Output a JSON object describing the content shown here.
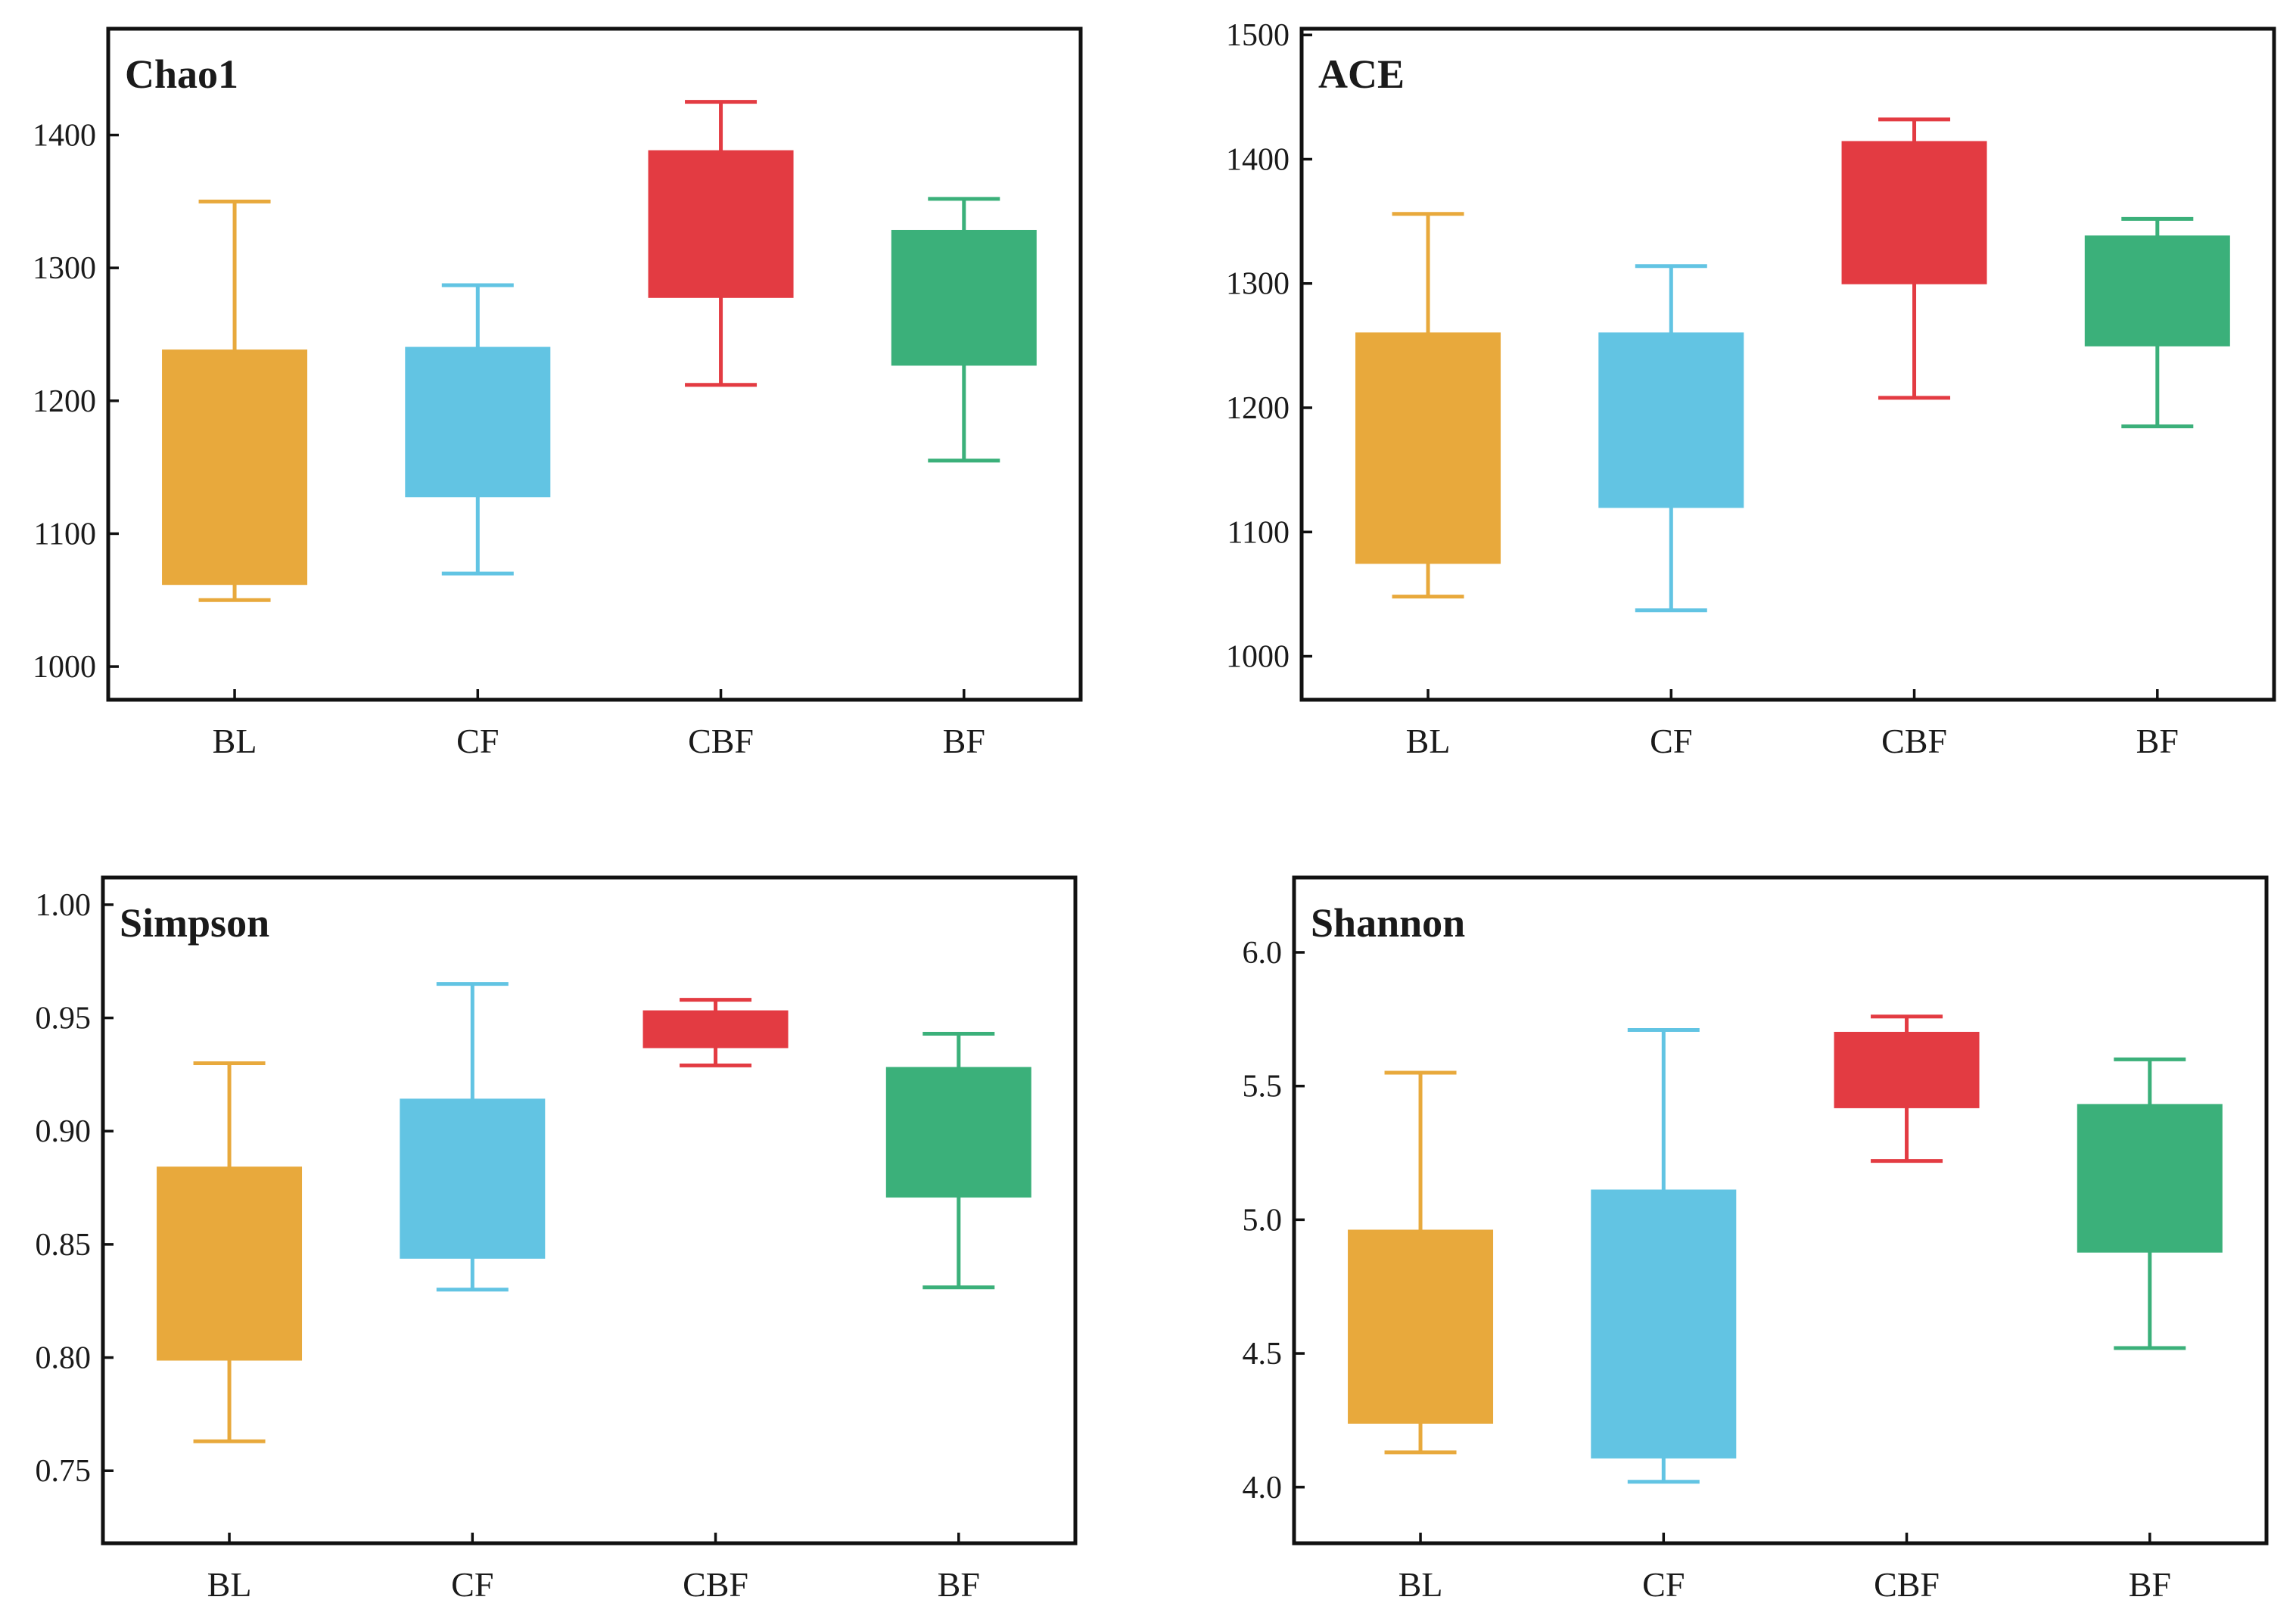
{
  "chart_data": [
    {
      "type": "box",
      "title": "Chao1",
      "categories": [
        "BL",
        "CF",
        "CBF",
        "BF"
      ],
      "colors": [
        "#E8A93C",
        "#62C4E3",
        "#E33B42",
        "#3BB07A"
      ],
      "ylim": [
        975,
        1480
      ],
      "yticks": [
        1000,
        1100,
        1200,
        1300,
        1400
      ],
      "ytick_labels": [
        "1000",
        "1100",
        "1200",
        "1300",
        "1400"
      ],
      "boxes": [
        {
          "min": 1050,
          "q1": 1062,
          "q3": 1238,
          "max": 1350
        },
        {
          "min": 1070,
          "q1": 1128,
          "q3": 1240,
          "max": 1287
        },
        {
          "min": 1212,
          "q1": 1278,
          "q3": 1388,
          "max": 1425
        },
        {
          "min": 1155,
          "q1": 1227,
          "q3": 1328,
          "max": 1352
        }
      ]
    },
    {
      "type": "box",
      "title": "ACE",
      "categories": [
        "BL",
        "CF",
        "CBF",
        "BF"
      ],
      "colors": [
        "#E8A93C",
        "#62C4E3",
        "#E33B42",
        "#3BB07A"
      ],
      "ylim": [
        965,
        1505
      ],
      "yticks": [
        1000,
        1100,
        1200,
        1300,
        1400,
        1500
      ],
      "ytick_labels": [
        "1000",
        "1100",
        "1200",
        "1300",
        "1400",
        "1500"
      ],
      "boxes": [
        {
          "min": 1048,
          "q1": 1075,
          "q3": 1260,
          "max": 1356
        },
        {
          "min": 1037,
          "q1": 1120,
          "q3": 1260,
          "max": 1314
        },
        {
          "min": 1208,
          "q1": 1300,
          "q3": 1414,
          "max": 1432
        },
        {
          "min": 1185,
          "q1": 1250,
          "q3": 1338,
          "max": 1352
        }
      ]
    },
    {
      "type": "box",
      "title": "Simpson",
      "categories": [
        "BL",
        "CF",
        "CBF",
        "BF"
      ],
      "colors": [
        "#E8A93C",
        "#62C4E3",
        "#E33B42",
        "#3BB07A"
      ],
      "ylim": [
        0.718,
        1.012
      ],
      "yticks": [
        0.75,
        0.8,
        0.85,
        0.9,
        0.95,
        1.0
      ],
      "ytick_labels": [
        "0.75",
        "0.80",
        "0.85",
        "0.90",
        "0.95",
        "1.00"
      ],
      "boxes": [
        {
          "min": 0.763,
          "q1": 0.799,
          "q3": 0.884,
          "max": 0.93
        },
        {
          "min": 0.83,
          "q1": 0.844,
          "q3": 0.914,
          "max": 0.965
        },
        {
          "min": 0.929,
          "q1": 0.937,
          "q3": 0.953,
          "max": 0.958
        },
        {
          "min": 0.831,
          "q1": 0.871,
          "q3": 0.928,
          "max": 0.943
        }
      ]
    },
    {
      "type": "box",
      "title": "Shannon",
      "categories": [
        "BL",
        "CF",
        "CBF",
        "BF"
      ],
      "colors": [
        "#E8A93C",
        "#62C4E3",
        "#E33B42",
        "#3BB07A"
      ],
      "ylim": [
        3.79,
        6.28
      ],
      "yticks": [
        4.0,
        4.5,
        5.0,
        5.5,
        6.0
      ],
      "ytick_labels": [
        "4.0",
        "4.5",
        "5.0",
        "5.5",
        "6.0"
      ],
      "boxes": [
        {
          "min": 4.13,
          "q1": 4.24,
          "q3": 4.96,
          "max": 5.55
        },
        {
          "min": 4.02,
          "q1": 4.11,
          "q3": 5.11,
          "max": 5.71
        },
        {
          "min": 5.22,
          "q1": 5.42,
          "q3": 5.7,
          "max": 5.76
        },
        {
          "min": 4.52,
          "q1": 4.88,
          "q3": 5.43,
          "max": 5.6
        }
      ]
    }
  ]
}
